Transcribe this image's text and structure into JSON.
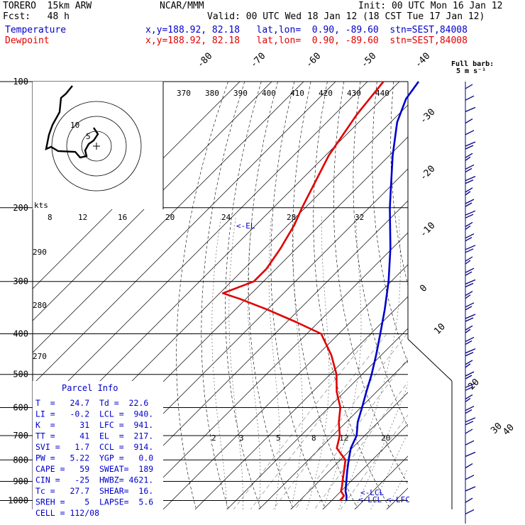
{
  "header": {
    "model": "TORERO  15km ARW",
    "org": "NCAR/MMM",
    "init": "Init: 00 UTC Mon 16 Jan 12",
    "fcst": "Fcst:   48 h",
    "valid": "Valid: 00 UTC Wed 18 Jan 12 (18 CST Tue 17 Jan 12)",
    "temp_label": "Temperature",
    "dew_label": "Dewpoint",
    "temp_loc": "x,y=188.92, 82.18   lat,lon=  0.90, -89.60  stn=SEST,84008",
    "dew_loc": "x,y=188.92, 82.18   lat,lon=  0.90, -89.60  stn=SEST,84008"
  },
  "wind_key": {
    "line1": "Full barb:",
    "line2": "5 m s⁻¹"
  },
  "hodograph": {
    "units": "kts",
    "ring_labels": [
      "5",
      "10"
    ]
  },
  "parcel": {
    "title": "Parcel Info",
    "rows": [
      "T  =   24.7  Td =  22.6",
      "LI =   -0.2  LCL =  940.",
      "K  =     31  LFC =  941.",
      "TT =     41  EL  =  217.",
      "SVI =   1.7  CCL =  914.",
      "PW =   5.22  YGP =   0.0",
      "CAPE =   59  SWEAT=  189",
      "CIN =   -25  HWBZ= 4621.",
      "Tc =   27.7  SHEAR=  16.",
      "SREH =    5  LAPSE=  5.6",
      "CELL = 112/08"
    ]
  },
  "annotations": {
    "el": "<-EL",
    "lcl": "<-LCL",
    "lcl_lfc": "<-LCL <-LFC"
  },
  "colors": {
    "temperature": "#0000cc",
    "dewpoint": "#e00000",
    "hodograph": "#000000",
    "barbs": "#000080"
  },
  "chart_data": {
    "type": "line",
    "title": "",
    "xlabel": "",
    "ylabel": "",
    "pressure_levels": [
      "100",
      "200",
      "300",
      "400",
      "500",
      "600",
      "700",
      "800",
      "900",
      "1000"
    ],
    "temperature_axis_labels": [
      "-80",
      "-70",
      "-60",
      "-50",
      "-40",
      "-30",
      "-20",
      "-10",
      "0",
      "10",
      "20",
      "30",
      "40"
    ],
    "theta_labels": [
      "370",
      "380",
      "390",
      "400",
      "410",
      "420",
      "430",
      "440"
    ],
    "theta_e_labels": [
      "290",
      "280",
      "270"
    ],
    "mixing_ratio_labels": [
      "8",
      "12",
      "16",
      "20",
      "24",
      "28",
      "32"
    ],
    "mixing_ratio_low_labels": [
      "2",
      "3",
      "5",
      "8",
      "12",
      "20"
    ],
    "series": [
      {
        "name": "Temperature",
        "points": [
          [
            1000,
            24.6
          ],
          [
            975,
            23.2
          ],
          [
            950,
            21.4
          ],
          [
            925,
            20.0
          ],
          [
            900,
            18.6
          ],
          [
            850,
            15.6
          ],
          [
            800,
            12.6
          ],
          [
            750,
            9.6
          ],
          [
            700,
            7.5
          ],
          [
            650,
            3.6
          ],
          [
            600,
            0.4
          ],
          [
            550,
            -3.2
          ],
          [
            500,
            -7.0
          ],
          [
            450,
            -11.6
          ],
          [
            400,
            -17.0
          ],
          [
            350,
            -23.2
          ],
          [
            300,
            -30.8
          ],
          [
            250,
            -40.6
          ],
          [
            200,
            -53.5
          ],
          [
            180,
            -59.2
          ],
          [
            150,
            -69.0
          ],
          [
            125,
            -78.0
          ],
          [
            110,
            -82.5
          ],
          [
            100,
            -84.0
          ]
        ]
      },
      {
        "name": "Dewpoint",
        "points": [
          [
            1000,
            22.6
          ],
          [
            975,
            22.4
          ],
          [
            950,
            20.0
          ],
          [
            925,
            18.8
          ],
          [
            900,
            17.4
          ],
          [
            850,
            14.6
          ],
          [
            800,
            11.6
          ],
          [
            750,
            5.2
          ],
          [
            700,
            2.2
          ],
          [
            650,
            -2.3
          ],
          [
            600,
            -6.4
          ],
          [
            550,
            -12.5
          ],
          [
            500,
            -18.0
          ],
          [
            450,
            -25.6
          ],
          [
            400,
            -35.5
          ],
          [
            375,
            -47.0
          ],
          [
            350,
            -60.0
          ],
          [
            330,
            -72.0
          ],
          [
            320,
            -79.0
          ],
          [
            300,
            -73.0
          ],
          [
            280,
            -73.0
          ],
          [
            250,
            -75.0
          ],
          [
            220,
            -78.0
          ],
          [
            200,
            -81.0
          ],
          [
            150,
            -89.0
          ],
          [
            120,
            -93.0
          ],
          [
            100,
            -95.0
          ]
        ]
      }
    ]
  }
}
